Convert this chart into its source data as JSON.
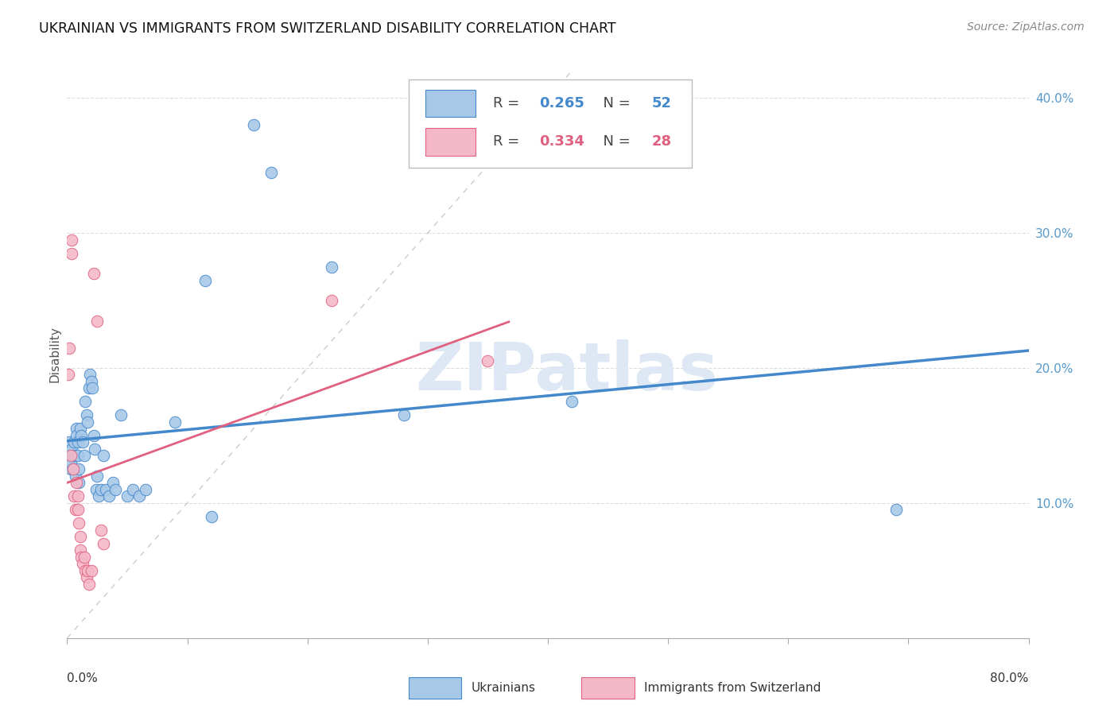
{
  "title": "UKRAINIAN VS IMMIGRANTS FROM SWITZERLAND DISABILITY CORRELATION CHART",
  "source": "Source: ZipAtlas.com",
  "ylabel": "Disability",
  "watermark": "ZIPatlas",
  "blue_R": 0.265,
  "blue_N": 52,
  "pink_R": 0.334,
  "pink_N": 28,
  "blue_color": "#a8c8e8",
  "pink_color": "#f4b8c8",
  "blue_line_color": "#4488cc",
  "pink_line_color": "#e06080",
  "diag_color": "#cccccc",
  "xmin": 0.0,
  "xmax": 0.8,
  "ymin": 0.0,
  "ymax": 0.42,
  "blue_points": [
    [
      0.001,
      0.135
    ],
    [
      0.002,
      0.145
    ],
    [
      0.003,
      0.125
    ],
    [
      0.003,
      0.13
    ],
    [
      0.004,
      0.14
    ],
    [
      0.005,
      0.135
    ],
    [
      0.005,
      0.125
    ],
    [
      0.006,
      0.145
    ],
    [
      0.007,
      0.135
    ],
    [
      0.007,
      0.12
    ],
    [
      0.008,
      0.155
    ],
    [
      0.008,
      0.15
    ],
    [
      0.009,
      0.135
    ],
    [
      0.009,
      0.145
    ],
    [
      0.01,
      0.125
    ],
    [
      0.01,
      0.115
    ],
    [
      0.011,
      0.155
    ],
    [
      0.012,
      0.15
    ],
    [
      0.013,
      0.145
    ],
    [
      0.014,
      0.135
    ],
    [
      0.015,
      0.175
    ],
    [
      0.016,
      0.165
    ],
    [
      0.017,
      0.16
    ],
    [
      0.018,
      0.185
    ],
    [
      0.019,
      0.195
    ],
    [
      0.02,
      0.19
    ],
    [
      0.021,
      0.185
    ],
    [
      0.022,
      0.15
    ],
    [
      0.023,
      0.14
    ],
    [
      0.024,
      0.11
    ],
    [
      0.025,
      0.12
    ],
    [
      0.026,
      0.105
    ],
    [
      0.028,
      0.11
    ],
    [
      0.03,
      0.135
    ],
    [
      0.032,
      0.11
    ],
    [
      0.035,
      0.105
    ],
    [
      0.038,
      0.115
    ],
    [
      0.04,
      0.11
    ],
    [
      0.045,
      0.165
    ],
    [
      0.05,
      0.105
    ],
    [
      0.055,
      0.11
    ],
    [
      0.06,
      0.105
    ],
    [
      0.065,
      0.11
    ],
    [
      0.09,
      0.16
    ],
    [
      0.115,
      0.265
    ],
    [
      0.12,
      0.09
    ],
    [
      0.155,
      0.38
    ],
    [
      0.17,
      0.345
    ],
    [
      0.22,
      0.275
    ],
    [
      0.28,
      0.165
    ],
    [
      0.42,
      0.175
    ],
    [
      0.69,
      0.095
    ]
  ],
  "pink_points": [
    [
      0.001,
      0.195
    ],
    [
      0.002,
      0.215
    ],
    [
      0.003,
      0.135
    ],
    [
      0.004,
      0.295
    ],
    [
      0.004,
      0.285
    ],
    [
      0.005,
      0.125
    ],
    [
      0.006,
      0.105
    ],
    [
      0.007,
      0.095
    ],
    [
      0.008,
      0.115
    ],
    [
      0.009,
      0.095
    ],
    [
      0.009,
      0.105
    ],
    [
      0.01,
      0.085
    ],
    [
      0.011,
      0.075
    ],
    [
      0.011,
      0.065
    ],
    [
      0.012,
      0.06
    ],
    [
      0.013,
      0.055
    ],
    [
      0.014,
      0.06
    ],
    [
      0.015,
      0.05
    ],
    [
      0.016,
      0.045
    ],
    [
      0.017,
      0.05
    ],
    [
      0.018,
      0.04
    ],
    [
      0.02,
      0.05
    ],
    [
      0.022,
      0.27
    ],
    [
      0.025,
      0.235
    ],
    [
      0.028,
      0.08
    ],
    [
      0.03,
      0.07
    ],
    [
      0.22,
      0.25
    ],
    [
      0.35,
      0.205
    ]
  ]
}
